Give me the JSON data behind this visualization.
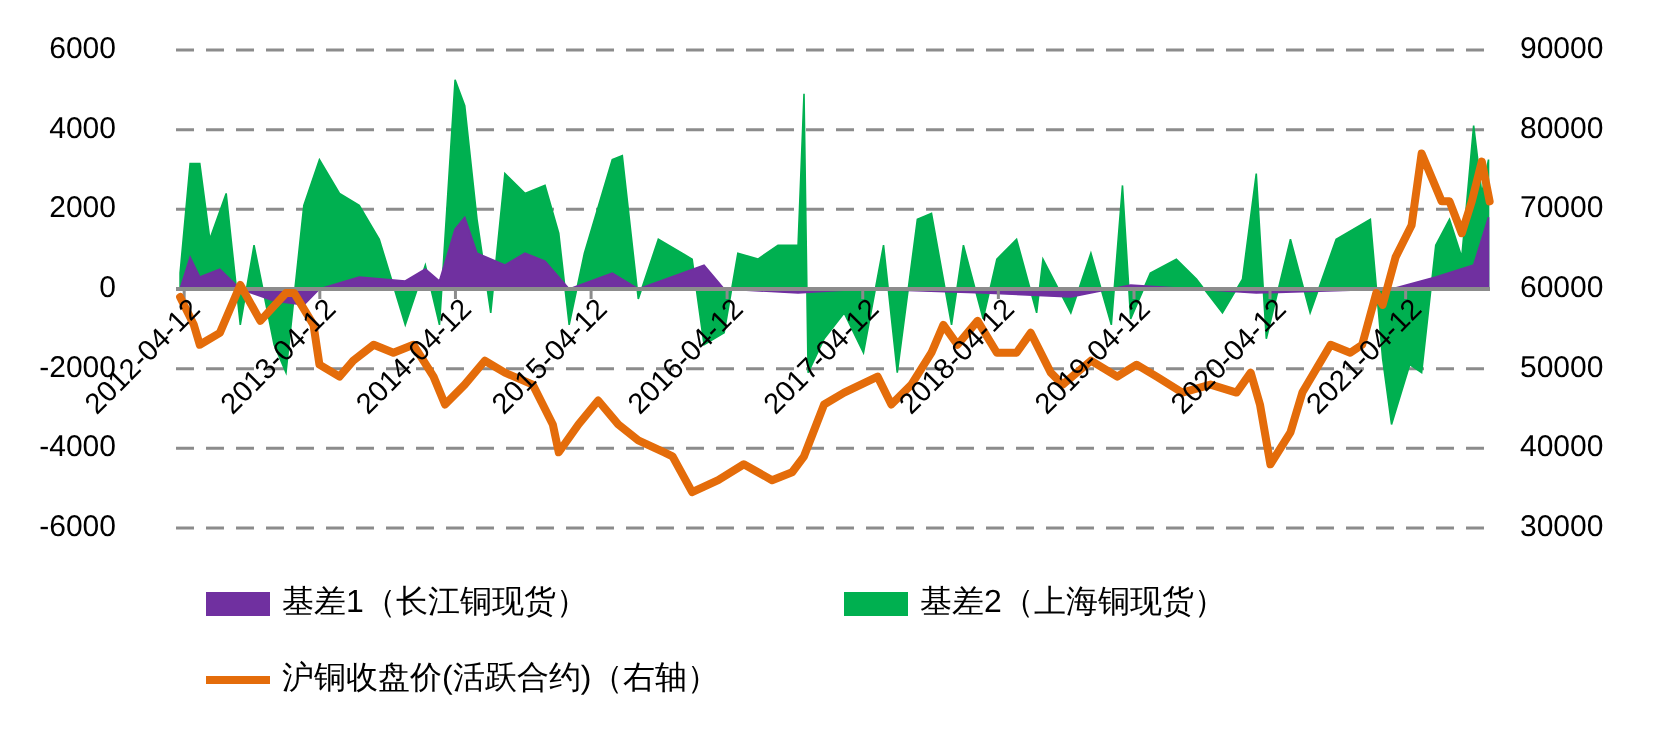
{
  "chart_data": {
    "type": "area",
    "xlim": [
      "2012-03-21",
      "2021-11-25"
    ],
    "xticks": [
      {
        "value": "2012-04-12",
        "label": "2012-04-12"
      },
      {
        "value": "2013-04-12",
        "label": "2013-04-12"
      },
      {
        "value": "2014-04-12",
        "label": "2014-04-12"
      },
      {
        "value": "2015-04-12",
        "label": "2015-04-12"
      },
      {
        "value": "2016-04-12",
        "label": "2016-04-12"
      },
      {
        "value": "2017-04-12",
        "label": "2017-04-12"
      },
      {
        "value": "2018-04-12",
        "label": "2018-04-12"
      },
      {
        "value": "2019-04-12",
        "label": "2019-04-12"
      },
      {
        "value": "2020-04-12",
        "label": "2020-04-12"
      },
      {
        "value": "2021-04-12",
        "label": "2021-04-12"
      }
    ],
    "ylim": [
      -6000,
      6000
    ],
    "yticks": [
      -6000,
      -4000,
      -2000,
      0,
      2000,
      4000,
      6000
    ],
    "y2lim": [
      30000,
      90000
    ],
    "y2ticks": [
      30000,
      40000,
      50000,
      60000,
      70000,
      80000,
      90000
    ],
    "grid": "y",
    "legend": "bottom",
    "series": [
      {
        "name": "基差1（长江铜现货）",
        "color": "#7030a0",
        "x": [
          "2012-04-01",
          "2012-04-28",
          "2012-05-24",
          "2012-07-17",
          "2012-09-10",
          "2012-12-10",
          "2013-02-28",
          "2013-04-11",
          "2013-07-27",
          "2013-11-28",
          "2014-01-21",
          "2014-02-28",
          "2014-04-11",
          "2014-05-07",
          "2014-06-09",
          "2014-08-23",
          "2014-10-16",
          "2014-12-09",
          "2015-02-12",
          "2015-06-08",
          "2015-08-17",
          "2016-02-10",
          "2016-04-04",
          "2016-10-20",
          "2017-04-14",
          "2018-03-02",
          "2018-10-24",
          "2019-04-03",
          "2020-03-06",
          "2021-03-05",
          "2021-07-02",
          "2021-10-12",
          "2021-11-21"
        ],
        "values": [
          0,
          800,
          300,
          500,
          0,
          -300,
          -400,
          0,
          300,
          200,
          500,
          200,
          1500,
          1800,
          900,
          600,
          900,
          700,
          0,
          400,
          0,
          600,
          0,
          -100,
          0,
          -100,
          -200,
          100,
          -100,
          0,
          300,
          600,
          1800
        ]
      },
      {
        "name": "基差2（上海铜现货）",
        "color": "#00b050",
        "x": [
          "2012-04-01",
          "2012-04-28",
          "2012-05-24",
          "2012-06-20",
          "2012-08-03",
          "2012-09-10",
          "2012-10-17",
          "2012-12-10",
          "2013-01-11",
          "2013-02-28",
          "2013-04-11",
          "2013-06-04",
          "2013-07-27",
          "2013-09-19",
          "2013-11-28",
          "2014-01-21",
          "2014-02-28",
          "2014-04-11",
          "2014-05-07",
          "2014-06-09",
          "2014-07-16",
          "2014-08-23",
          "2014-10-16",
          "2014-12-09",
          "2015-01-15",
          "2015-02-12",
          "2015-03-25",
          "2015-06-08",
          "2015-07-05",
          "2015-08-17",
          "2015-10-10",
          "2016-01-09",
          "2016-02-10",
          "2016-04-04",
          "2016-05-11",
          "2016-07-04",
          "2016-08-27",
          "2016-10-20",
          "2016-11-05",
          "2016-11-16",
          "2016-12-29",
          "2017-02-21",
          "2017-04-14",
          "2017-06-07",
          "2017-07-14",
          "2017-09-06",
          "2017-10-14",
          "2017-12-07",
          "2018-01-08",
          "2018-03-02",
          "2018-04-08",
          "2018-05-31",
          "2018-07-24",
          "2018-08-10",
          "2018-10-24",
          "2018-12-17",
          "2019-02-10",
          "2019-03-12",
          "2019-04-03",
          "2019-05-26",
          "2019-08-04",
          "2019-09-27",
          "2019-12-06",
          "2020-01-29",
          "2020-03-06",
          "2020-04-02",
          "2020-06-06",
          "2020-07-29",
          "2020-10-07",
          "2021-01-07",
          "2021-02-09",
          "2021-03-05",
          "2021-04-23",
          "2021-05-25",
          "2021-07-02",
          "2021-08-08",
          "2021-09-10",
          "2021-10-12",
          "2021-11-03",
          "2021-11-21"
        ],
        "values": [
          400,
          3150,
          3150,
          1250,
          2400,
          -900,
          1100,
          -1400,
          -2100,
          2100,
          3250,
          2400,
          2100,
          1250,
          -900,
          600,
          -900,
          5250,
          4600,
          1750,
          -600,
          2900,
          2400,
          2600,
          1400,
          -900,
          900,
          3250,
          3350,
          -250,
          1250,
          750,
          -1400,
          -1100,
          900,
          750,
          1100,
          1100,
          4900,
          -2100,
          -1250,
          -600,
          -1600,
          1100,
          -2100,
          1750,
          1900,
          -900,
          1100,
          -750,
          750,
          1250,
          -600,
          750,
          -600,
          900,
          -900,
          2600,
          -750,
          400,
          750,
          250,
          -600,
          250,
          2900,
          -1250,
          1250,
          -600,
          1250,
          1750,
          -1750,
          -3400,
          -1900,
          -2100,
          1100,
          1750,
          800,
          4100,
          2400,
          3250
        ]
      },
      {
        "name": "沪铜收盘价(活跃合约)（右轴）",
        "type": "line",
        "axis": "y2",
        "color": "#e46c0a",
        "x": [
          "2012-04-01",
          "2012-05-08",
          "2012-05-24",
          "2012-07-17",
          "2012-09-10",
          "2012-11-03",
          "2013-01-11",
          "2013-02-02",
          "2013-03-26",
          "2013-04-11",
          "2013-06-04",
          "2013-07-11",
          "2013-09-04",
          "2013-10-27",
          "2013-12-20",
          "2014-02-12",
          "2014-03-15",
          "2014-05-07",
          "2014-06-30",
          "2014-08-23",
          "2014-11-06",
          "2014-12-30",
          "2015-01-15",
          "2015-03-09",
          "2015-05-01",
          "2015-06-24",
          "2015-08-17",
          "2015-10-26",
          "2015-11-17",
          "2016-01-09",
          "2016-03-19",
          "2016-05-27",
          "2016-08-11",
          "2016-10-04",
          "2016-11-05",
          "2016-12-29",
          "2017-02-21",
          "2017-05-22",
          "2017-06-28",
          "2017-08-21",
          "2017-10-14",
          "2017-11-15",
          "2017-12-23",
          "2018-02-15",
          "2018-04-08",
          "2018-05-31",
          "2018-07-08",
          "2018-08-31",
          "2018-10-02",
          "2018-12-17",
          "2019-02-26",
          "2019-04-19",
          "2019-06-12",
          "2019-08-20",
          "2019-11-04",
          "2020-01-13",
          "2020-02-20",
          "2020-03-16",
          "2020-04-13",
          "2020-06-06",
          "2020-07-08",
          "2020-09-22",
          "2020-11-14",
          "2020-12-16",
          "2021-01-23",
          "2021-02-09",
          "2021-03-16",
          "2021-04-28",
          "2021-05-25",
          "2021-07-18",
          "2021-08-08",
          "2021-09-10",
          "2021-10-07",
          "2021-11-03",
          "2021-11-24"
        ],
        "values": [
          59000,
          55500,
          53000,
          54500,
          60500,
          56000,
          59500,
          59500,
          55500,
          50500,
          49000,
          51000,
          53000,
          52000,
          53000,
          49000,
          45500,
          48000,
          51000,
          49500,
          48000,
          43000,
          39500,
          43000,
          46000,
          43000,
          41000,
          39500,
          39000,
          34500,
          36000,
          38000,
          36000,
          37000,
          39000,
          45500,
          47000,
          49000,
          45500,
          48000,
          52000,
          55500,
          53000,
          56000,
          52000,
          52000,
          54500,
          49500,
          48000,
          51000,
          49000,
          50500,
          49000,
          47000,
          48000,
          47000,
          49500,
          45500,
          38000,
          42000,
          47000,
          53000,
          52000,
          53000,
          59500,
          58000,
          64000,
          68000,
          77000,
          71000,
          71000,
          67000,
          71000,
          76000,
          71000
        ]
      }
    ]
  }
}
